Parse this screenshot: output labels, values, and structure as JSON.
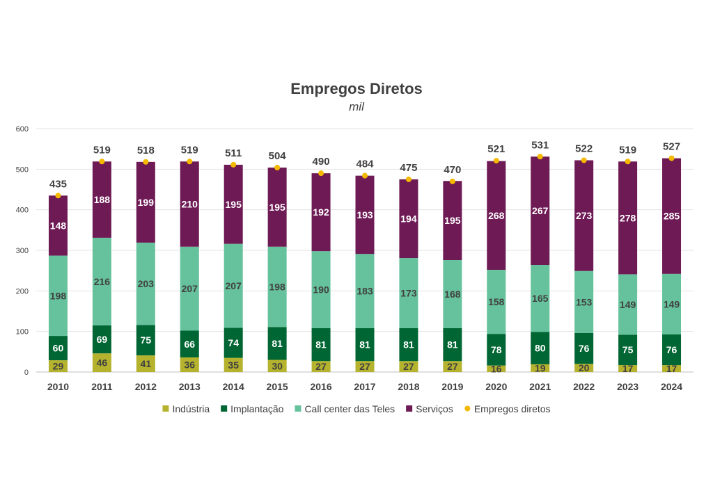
{
  "chart_data": {
    "type": "bar",
    "stacked": true,
    "title": "Empregos Diretos",
    "subtitle": "mil",
    "ylim": [
      0,
      600
    ],
    "yticks": [
      0,
      100,
      200,
      300,
      400,
      500,
      600
    ],
    "grid": true,
    "legend_position": "bottom",
    "categories": [
      "2010",
      "2011",
      "2012",
      "2013",
      "2014",
      "2015",
      "2016",
      "2017",
      "2018",
      "2019",
      "2020",
      "2021",
      "2022",
      "2023",
      "2024"
    ],
    "series": [
      {
        "name": "Indústria",
        "color": "#b5b32e",
        "label_color": "#404040",
        "values": [
          29,
          46,
          41,
          36,
          35,
          30,
          27,
          27,
          27,
          27,
          16,
          19,
          20,
          17,
          17
        ]
      },
      {
        "name": "Implantação",
        "color": "#006633",
        "label_color": "#ffffff",
        "values": [
          60,
          69,
          75,
          66,
          74,
          81,
          81,
          81,
          81,
          81,
          78,
          80,
          76,
          75,
          76
        ]
      },
      {
        "name": "Call center das Teles",
        "color": "#66c29c",
        "label_color": "#404040",
        "values": [
          198,
          216,
          203,
          207,
          207,
          198,
          190,
          183,
          173,
          168,
          158,
          165,
          153,
          149,
          149
        ]
      },
      {
        "name": "Serviços",
        "color": "#6e1a55",
        "label_color": "#ffffff",
        "values": [
          148,
          188,
          199,
          210,
          195,
          195,
          192,
          193,
          194,
          195,
          268,
          267,
          273,
          278,
          285
        ]
      }
    ],
    "totals": {
      "name": "Empregos diretos",
      "color": "#f5b800",
      "values": [
        435,
        519,
        518,
        519,
        511,
        504,
        490,
        484,
        475,
        470,
        521,
        531,
        522,
        519,
        527
      ]
    }
  }
}
